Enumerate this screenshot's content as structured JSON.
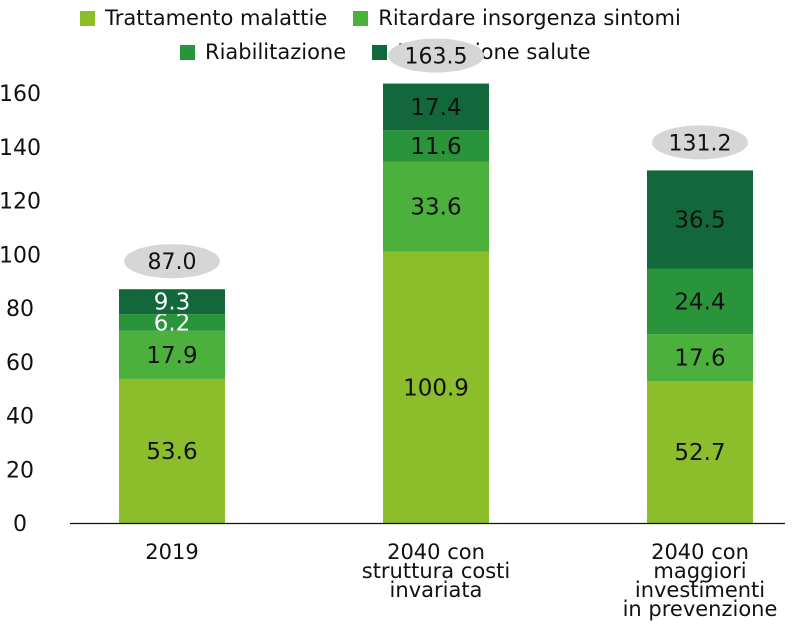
{
  "chart_data": {
    "type": "bar",
    "stacked": true,
    "categories": [
      "2019",
      "2040 con struttura costi invariata",
      "2040 con maggiori investimenti in prevenzione"
    ],
    "category_lines": [
      [
        "2019"
      ],
      [
        "2040 con",
        "struttura costi",
        "invariata"
      ],
      [
        "2040 con",
        "maggiori",
        "investimenti",
        "in prevenzione"
      ]
    ],
    "series": [
      {
        "name": "Trattamento malattie",
        "color": "#8cbd2b",
        "values": [
          53.6,
          100.9,
          52.7
        ]
      },
      {
        "name": "Ritardare insorgenza sintomi",
        "color": "#4bb13c",
        "values": [
          17.9,
          33.6,
          17.6
        ]
      },
      {
        "name": "Riabilitazione",
        "color": "#2a943b",
        "values": [
          6.2,
          11.6,
          24.4
        ]
      },
      {
        "name": "Promozione salute",
        "color": "#12683a",
        "values": [
          9.3,
          17.4,
          36.5
        ]
      }
    ],
    "value_labels": [
      [
        "53.6",
        "100.9",
        "52.7"
      ],
      [
        "17.9",
        "33.6",
        "17.6"
      ],
      [
        "6.2",
        "11.6",
        "24.4"
      ],
      [
        "9.3",
        "17.4",
        "36.5"
      ]
    ],
    "totals": [
      "87.0",
      "163.5",
      "131.2"
    ],
    "yticks": [
      "0",
      "20",
      "40",
      "60",
      "80",
      "100",
      "120",
      "140",
      "160"
    ],
    "ylim": [
      0,
      160
    ],
    "legend_position": "top"
  }
}
